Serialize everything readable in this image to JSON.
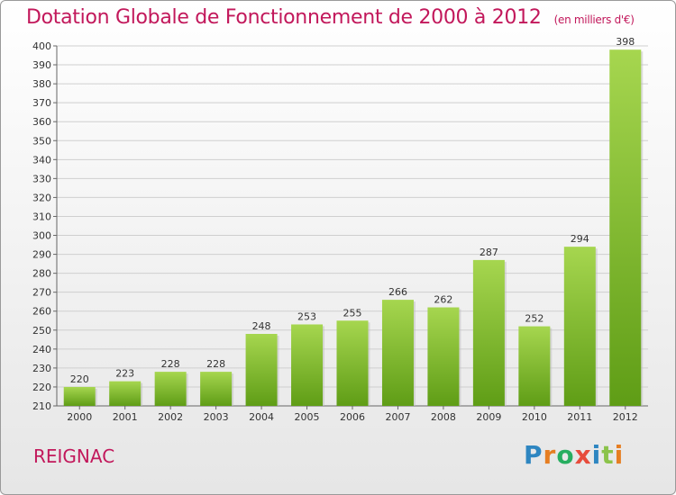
{
  "header": {
    "title": "Dotation Globale de Fonctionnement de 2000 à 2012",
    "subtitle": "(en milliers d'€)"
  },
  "footer": {
    "place": "REIGNAC",
    "logo_letters": [
      "P",
      "r",
      "o",
      "x",
      "i",
      "t",
      "i"
    ],
    "logo_colors": [
      "#2e86c1",
      "#e67e22",
      "#27ae60",
      "#e74c3c",
      "#2e86c1",
      "#8bc34a",
      "#e67e22"
    ]
  },
  "colors": {
    "bar_top": "#a6d64f",
    "bar_bottom": "#5f9d16",
    "grid": "#cfcfcf",
    "axis": "#666666",
    "text": "#333333"
  },
  "chart_data": {
    "type": "bar",
    "categories": [
      "2000",
      "2001",
      "2002",
      "2003",
      "2004",
      "2005",
      "2006",
      "2007",
      "2008",
      "2009",
      "2010",
      "2011",
      "2012"
    ],
    "values": [
      220,
      223,
      228,
      228,
      248,
      253,
      255,
      266,
      262,
      287,
      252,
      294,
      398
    ],
    "ylim": [
      210,
      400
    ],
    "ytick_step": 10,
    "grid": true
  }
}
